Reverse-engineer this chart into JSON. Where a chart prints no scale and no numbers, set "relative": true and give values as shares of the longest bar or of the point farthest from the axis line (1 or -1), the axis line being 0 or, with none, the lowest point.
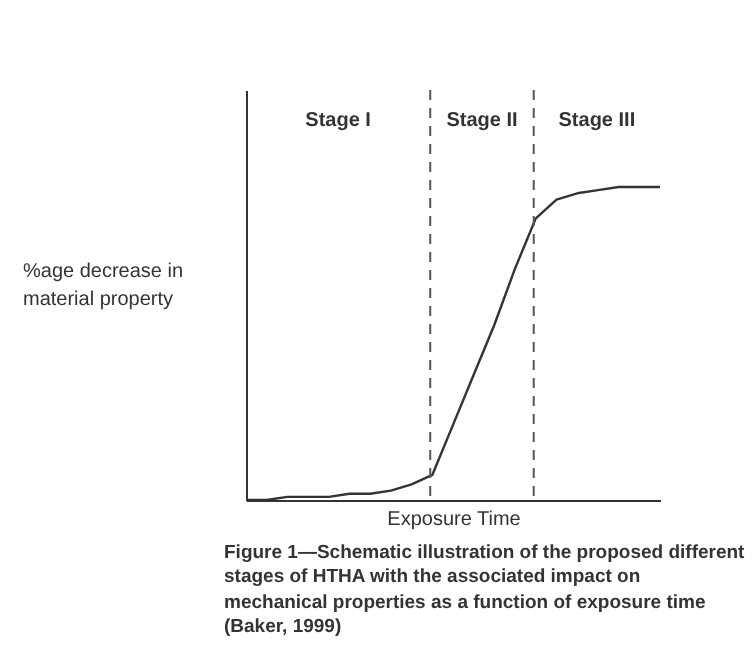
{
  "chart_data": {
    "type": "line",
    "relative": true,
    "xlabel": "Exposure Time",
    "ylabel": "%age decrease in material property",
    "categories": [
      null,
      null,
      null,
      null,
      null,
      null,
      null,
      null,
      null,
      null,
      null,
      null,
      null,
      null,
      null,
      null,
      null,
      null,
      null,
      null,
      null
    ],
    "series": [
      {
        "color": "#333333",
        "values": [
          0,
          0,
          0.01,
          0.01,
          0.01,
          0.02,
          0.02,
          0.03,
          0.05,
          0.08,
          0.24,
          0.4,
          0.56,
          0.74,
          0.9,
          0.96,
          0.98,
          0.99,
          1,
          1,
          1
        ]
      }
    ],
    "annotations": [
      "Stage I",
      "Stage II",
      "Stage III",
      "Figure 1—Schematic illustration of the proposed different stages of HTHA with the associated impact on mechanical properties as a function of exposure time (Baker, 1999)"
    ],
    "marker": "none",
    "line_style": "solid"
  }
}
